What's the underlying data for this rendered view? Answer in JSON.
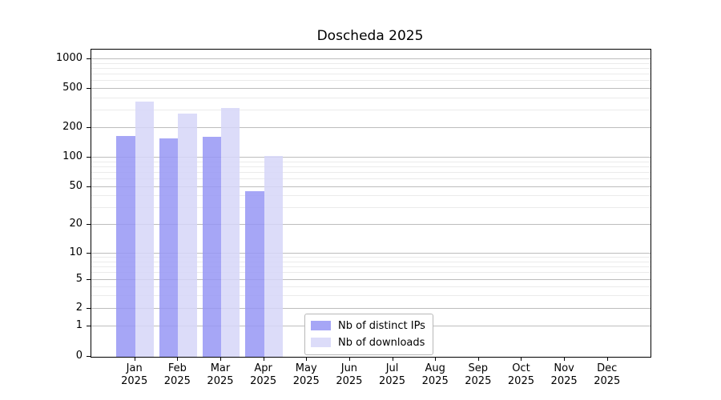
{
  "chart_data": {
    "type": "bar",
    "title": "Doscheda 2025",
    "categories": [
      "Jan",
      "Feb",
      "Mar",
      "Apr",
      "May",
      "Jun",
      "Jul",
      "Aug",
      "Sep",
      "Oct",
      "Nov",
      "Dec"
    ],
    "year_label": "2025",
    "series": [
      {
        "name": "Nb of distinct IPs",
        "color": "#9696f4",
        "values": [
          166,
          157,
          163,
          45,
          0,
          0,
          0,
          0,
          0,
          0,
          0,
          0
        ]
      },
      {
        "name": "Nb of downloads",
        "color": "#d6d6f8",
        "values": [
          370,
          280,
          320,
          103,
          0,
          0,
          0,
          0,
          0,
          0,
          0,
          0
        ]
      }
    ],
    "yticks": [
      0,
      1,
      2,
      5,
      10,
      20,
      50,
      100,
      200,
      500,
      1000
    ],
    "yaxis_scale": "log-like",
    "ylim": [
      0,
      1130
    ],
    "grid": "horizontal major and minor",
    "legend_position": "bottom-center-inside",
    "colors": {
      "ips_bar": "#a0a0f4",
      "downloads_bar": "#dcdcf8",
      "major_grid": "#bdbdbd",
      "minor_grid": "#ebebeb",
      "frame": "#000000"
    }
  }
}
